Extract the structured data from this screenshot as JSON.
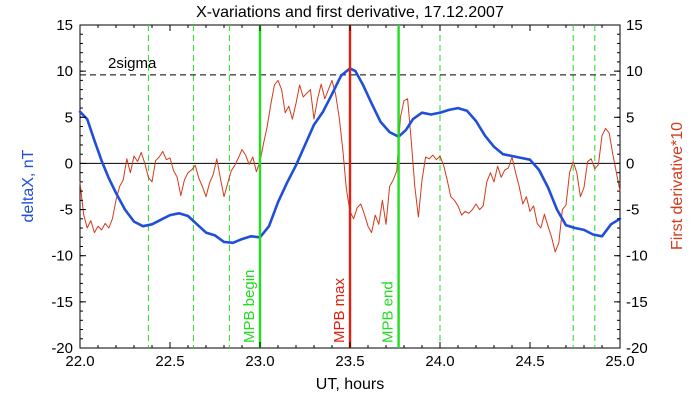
{
  "chart_data": {
    "type": "line",
    "title": "X-variations and first derivative, 17.12.2007",
    "xlabel": "UT, hours",
    "ylabel_left": "deltaX, nT",
    "ylabel_right": "First derivative*10",
    "xlim": [
      22.0,
      25.0
    ],
    "ylim": [
      -20,
      15
    ],
    "x_ticks": [
      22.0,
      22.5,
      23.0,
      23.5,
      24.0,
      24.5,
      25.0
    ],
    "y_ticks": [
      -20,
      -15,
      -10,
      -5,
      0,
      5,
      10,
      15
    ],
    "colors": {
      "deltax": "#1f4fd8",
      "derivative": "#d23a1c",
      "mpb_boundary": "#22dd22",
      "mpb_max": "#e02010",
      "zero_line": "#000000",
      "threshold": "#000000",
      "left_label": "#1f4fd8",
      "right_label": "#d23a1c"
    },
    "threshold": {
      "label": "2sigma",
      "value": 9.6
    },
    "zero_line": 0,
    "dashed_green_lines": [
      22.38,
      22.63,
      22.83,
      24.0,
      24.74,
      24.86
    ],
    "vertical_markers": [
      {
        "x": 23.0,
        "label": "MPB begin",
        "color_key": "mpb_boundary"
      },
      {
        "x": 23.5,
        "label": "MPB max",
        "color_key": "mpb_max"
      },
      {
        "x": 23.77,
        "label": "MPB end",
        "color_key": "mpb_boundary"
      }
    ],
    "series": [
      {
        "name": "deltaX, nT",
        "color_key": "deltax",
        "x": [
          22.0,
          22.04,
          22.08,
          22.12,
          22.16,
          22.2,
          22.25,
          22.3,
          22.35,
          22.4,
          22.45,
          22.5,
          22.55,
          22.6,
          22.65,
          22.7,
          22.75,
          22.8,
          22.85,
          22.9,
          22.95,
          23.0,
          23.05,
          23.1,
          23.15,
          23.2,
          23.25,
          23.3,
          23.35,
          23.4,
          23.45,
          23.5,
          23.53,
          23.57,
          23.62,
          23.67,
          23.72,
          23.77,
          23.81,
          23.85,
          23.9,
          23.95,
          24.0,
          24.05,
          24.1,
          24.15,
          24.2,
          24.25,
          24.3,
          24.35,
          24.4,
          24.45,
          24.5,
          24.55,
          24.6,
          24.65,
          24.7,
          24.75,
          24.8,
          24.85,
          24.9,
          24.95,
          25.0
        ],
        "values": [
          5.6,
          4.8,
          2.5,
          0.3,
          -1.6,
          -3.2,
          -5.0,
          -6.3,
          -6.8,
          -6.6,
          -6.1,
          -5.6,
          -5.4,
          -5.7,
          -6.6,
          -7.5,
          -7.8,
          -8.5,
          -8.6,
          -8.2,
          -7.9,
          -8.0,
          -6.8,
          -4.2,
          -2.1,
          -0.2,
          2.0,
          4.2,
          5.6,
          7.5,
          9.5,
          10.3,
          10.0,
          8.6,
          6.5,
          4.5,
          3.4,
          2.9,
          3.6,
          4.8,
          5.5,
          5.3,
          5.5,
          5.8,
          6.0,
          5.7,
          4.6,
          3.0,
          1.8,
          1.0,
          0.8,
          0.6,
          0.4,
          -0.7,
          -2.6,
          -5.0,
          -6.7,
          -7.0,
          -7.2,
          -7.7,
          -7.9,
          -6.6,
          -6.0
        ]
      },
      {
        "name": "First derivative*10",
        "color_key": "derivative",
        "x": [
          22.0,
          22.02,
          22.04,
          22.06,
          22.08,
          22.1,
          22.12,
          22.14,
          22.16,
          22.18,
          22.2,
          22.22,
          22.24,
          22.26,
          22.28,
          22.3,
          22.32,
          22.34,
          22.36,
          22.38,
          22.4,
          22.42,
          22.44,
          22.46,
          22.48,
          22.5,
          22.52,
          22.54,
          22.56,
          22.58,
          22.6,
          22.62,
          22.64,
          22.66,
          22.68,
          22.7,
          22.72,
          22.74,
          22.76,
          22.78,
          22.8,
          22.82,
          22.84,
          22.86,
          22.88,
          22.9,
          22.92,
          22.94,
          22.96,
          22.98,
          23.0,
          23.02,
          23.04,
          23.06,
          23.08,
          23.1,
          23.12,
          23.14,
          23.16,
          23.18,
          23.2,
          23.22,
          23.24,
          23.26,
          23.28,
          23.3,
          23.32,
          23.34,
          23.36,
          23.38,
          23.4,
          23.42,
          23.44,
          23.46,
          23.48,
          23.5,
          23.52,
          23.54,
          23.56,
          23.58,
          23.6,
          23.62,
          23.64,
          23.66,
          23.68,
          23.7,
          23.72,
          23.74,
          23.76,
          23.78,
          23.8,
          23.82,
          23.84,
          23.86,
          23.88,
          23.9,
          23.92,
          23.94,
          23.96,
          23.98,
          24.0,
          24.02,
          24.04,
          24.06,
          24.08,
          24.1,
          24.12,
          24.14,
          24.16,
          24.18,
          24.2,
          24.22,
          24.24,
          24.26,
          24.28,
          24.3,
          24.32,
          24.34,
          24.36,
          24.38,
          24.4,
          24.42,
          24.44,
          24.46,
          24.48,
          24.5,
          24.52,
          24.54,
          24.56,
          24.58,
          24.6,
          24.62,
          24.64,
          24.66,
          24.68,
          24.7,
          24.72,
          24.74,
          24.76,
          24.78,
          24.8,
          24.82,
          24.84,
          24.86,
          24.88,
          24.9,
          24.92,
          24.94,
          24.96,
          24.98,
          25.0
        ],
        "values": [
          -2.0,
          -5.5,
          -7.0,
          -6.2,
          -7.5,
          -6.8,
          -7.2,
          -6.5,
          -7.0,
          -6.0,
          -4.0,
          -2.5,
          -1.8,
          0.5,
          -1.0,
          0.8,
          0.2,
          1.2,
          0.0,
          -1.5,
          -2.0,
          0.3,
          0.7,
          1.3,
          0.4,
          0.6,
          -0.8,
          -1.5,
          -3.5,
          -1.8,
          -1.0,
          -0.7,
          -0.2,
          -1.6,
          -2.5,
          -3.6,
          -2.1,
          -1.2,
          0.5,
          -1.6,
          -3.6,
          -2.2,
          -0.8,
          -0.2,
          0.6,
          1.5,
          0.9,
          -0.1,
          0.7,
          -0.9,
          0.2,
          2.2,
          4.0,
          6.4,
          8.5,
          9.0,
          8.0,
          5.5,
          6.2,
          4.8,
          6.5,
          8.5,
          7.2,
          7.6,
          8.0,
          4.8,
          7.0,
          8.6,
          7.0,
          8.0,
          9.0,
          7.5,
          5.0,
          1.5,
          -2.8,
          -5.2,
          -6.0,
          -4.8,
          -4.4,
          -5.5,
          -6.8,
          -7.5,
          -5.6,
          -6.6,
          -4.0,
          -6.6,
          -2.5,
          -1.8,
          -0.8,
          5.0,
          6.8,
          7.0,
          2.5,
          -2.5,
          -5.8,
          -1.8,
          0.7,
          0.5,
          0.9,
          0.4,
          0.8,
          -0.2,
          -1.8,
          -3.6,
          -4.0,
          -4.6,
          -5.6,
          -5.2,
          -5.4,
          -5.0,
          -4.4,
          -5.0,
          -4.6,
          -2.0,
          -1.0,
          -2.0,
          -0.3,
          -1.5,
          -0.7,
          -0.5,
          0.7,
          -1.0,
          -2.5,
          -4.4,
          -3.6,
          -5.2,
          -4.6,
          -6.5,
          -7.0,
          -5.5,
          -6.8,
          -8.0,
          -9.6,
          -8.6,
          -5.0,
          -4.5,
          -1.0,
          0.2,
          -1.0,
          -3.6,
          -2.6,
          0.2,
          0.5,
          -0.6,
          -0.1,
          3.0,
          3.8,
          3.3,
          1.0,
          -1.0,
          -3.0
        ]
      }
    ]
  }
}
